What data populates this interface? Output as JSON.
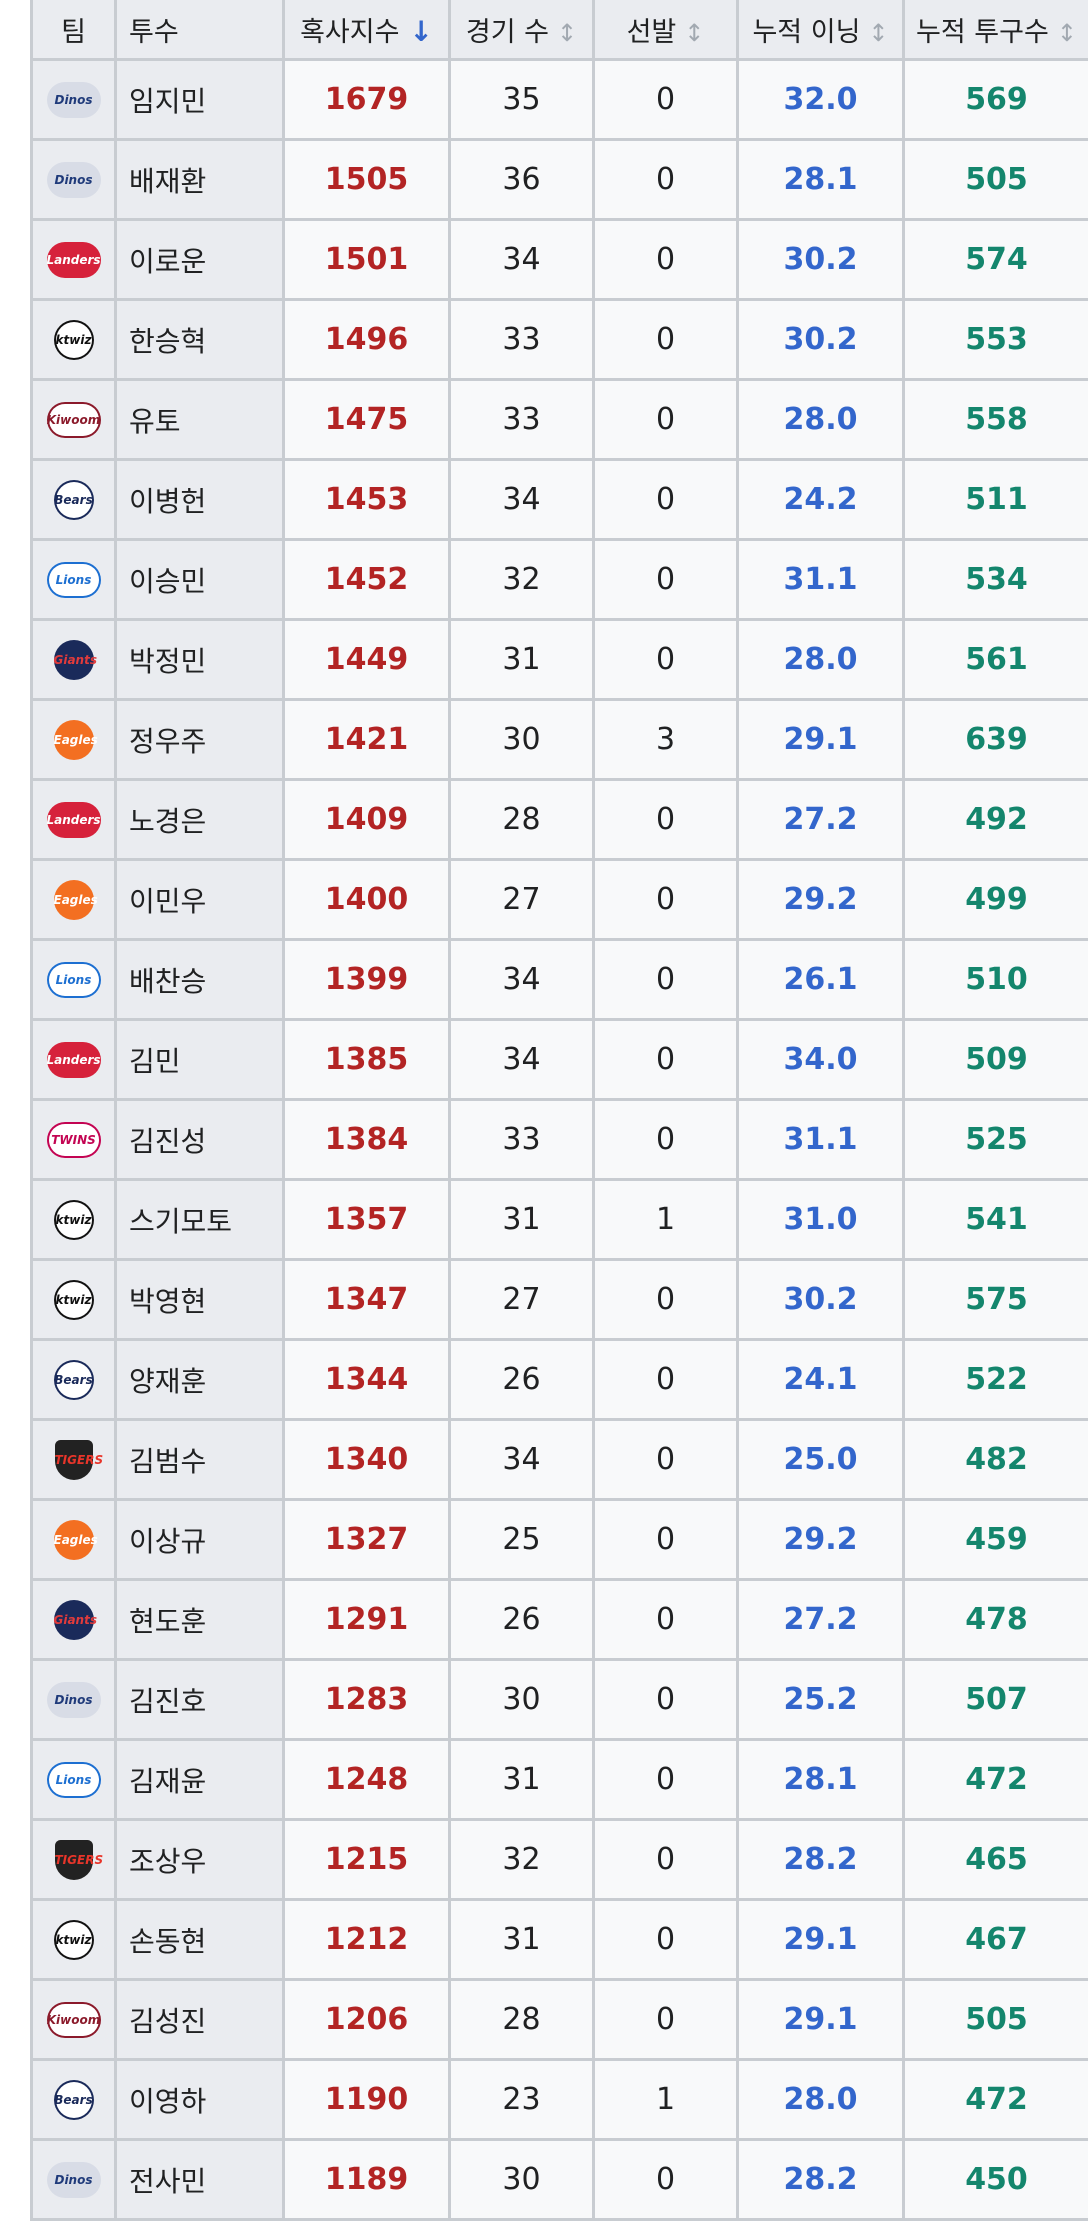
{
  "table": {
    "headers": {
      "team": "팀",
      "pitcher": "투수",
      "index": "혹사지수",
      "games": "경기 수",
      "starts": "선발",
      "innings": "누적 이닝",
      "pitches": "누적 투구수"
    },
    "sort_indicators": {
      "active": "↓",
      "inactive": "↕"
    },
    "rows": [
      {
        "team_logo": "Dinos",
        "pitcher": "임지민",
        "index": "1679",
        "games": "35",
        "starts": "0",
        "innings": "32.0",
        "pitches": "569"
      },
      {
        "team_logo": "Dinos",
        "pitcher": "배재환",
        "index": "1505",
        "games": "36",
        "starts": "0",
        "innings": "28.1",
        "pitches": "505"
      },
      {
        "team_logo": "Landers",
        "pitcher": "이로운",
        "index": "1501",
        "games": "34",
        "starts": "0",
        "innings": "30.2",
        "pitches": "574"
      },
      {
        "team_logo": "ktwiz",
        "pitcher": "한승혁",
        "index": "1496",
        "games": "33",
        "starts": "0",
        "innings": "30.2",
        "pitches": "553"
      },
      {
        "team_logo": "Kiwoom",
        "pitcher": "유토",
        "index": "1475",
        "games": "33",
        "starts": "0",
        "innings": "28.0",
        "pitches": "558"
      },
      {
        "team_logo": "Bears",
        "pitcher": "이병헌",
        "index": "1453",
        "games": "34",
        "starts": "0",
        "innings": "24.2",
        "pitches": "511"
      },
      {
        "team_logo": "Lions",
        "pitcher": "이승민",
        "index": "1452",
        "games": "32",
        "starts": "0",
        "innings": "31.1",
        "pitches": "534"
      },
      {
        "team_logo": "Giants",
        "pitcher": "박정민",
        "index": "1449",
        "games": "31",
        "starts": "0",
        "innings": "28.0",
        "pitches": "561"
      },
      {
        "team_logo": "Eagles",
        "pitcher": "정우주",
        "index": "1421",
        "games": "30",
        "starts": "3",
        "innings": "29.1",
        "pitches": "639"
      },
      {
        "team_logo": "Landers",
        "pitcher": "노경은",
        "index": "1409",
        "games": "28",
        "starts": "0",
        "innings": "27.2",
        "pitches": "492"
      },
      {
        "team_logo": "Eagles",
        "pitcher": "이민우",
        "index": "1400",
        "games": "27",
        "starts": "0",
        "innings": "29.2",
        "pitches": "499"
      },
      {
        "team_logo": "Lions",
        "pitcher": "배찬승",
        "index": "1399",
        "games": "34",
        "starts": "0",
        "innings": "26.1",
        "pitches": "510"
      },
      {
        "team_logo": "Landers",
        "pitcher": "김민",
        "index": "1385",
        "games": "34",
        "starts": "0",
        "innings": "34.0",
        "pitches": "509"
      },
      {
        "team_logo": "TWINS",
        "pitcher": "김진성",
        "index": "1384",
        "games": "33",
        "starts": "0",
        "innings": "31.1",
        "pitches": "525"
      },
      {
        "team_logo": "ktwiz",
        "pitcher": "스기모토",
        "index": "1357",
        "games": "31",
        "starts": "1",
        "innings": "31.0",
        "pitches": "541"
      },
      {
        "team_logo": "ktwiz",
        "pitcher": "박영현",
        "index": "1347",
        "games": "27",
        "starts": "0",
        "innings": "30.2",
        "pitches": "575"
      },
      {
        "team_logo": "Bears",
        "pitcher": "양재훈",
        "index": "1344",
        "games": "26",
        "starts": "0",
        "innings": "24.1",
        "pitches": "522"
      },
      {
        "team_logo": "TIGERS",
        "pitcher": "김범수",
        "index": "1340",
        "games": "34",
        "starts": "0",
        "innings": "25.0",
        "pitches": "482"
      },
      {
        "team_logo": "Eagles",
        "pitcher": "이상규",
        "index": "1327",
        "games": "25",
        "starts": "0",
        "innings": "29.2",
        "pitches": "459"
      },
      {
        "team_logo": "Giants",
        "pitcher": "현도훈",
        "index": "1291",
        "games": "26",
        "starts": "0",
        "innings": "27.2",
        "pitches": "478"
      },
      {
        "team_logo": "Dinos",
        "pitcher": "김진호",
        "index": "1283",
        "games": "30",
        "starts": "0",
        "innings": "25.2",
        "pitches": "507"
      },
      {
        "team_logo": "Lions",
        "pitcher": "김재윤",
        "index": "1248",
        "games": "31",
        "starts": "0",
        "innings": "28.1",
        "pitches": "472"
      },
      {
        "team_logo": "TIGERS",
        "pitcher": "조상우",
        "index": "1215",
        "games": "32",
        "starts": "0",
        "innings": "28.2",
        "pitches": "465"
      },
      {
        "team_logo": "ktwiz",
        "pitcher": "손동현",
        "index": "1212",
        "games": "31",
        "starts": "0",
        "innings": "29.1",
        "pitches": "467"
      },
      {
        "team_logo": "Kiwoom",
        "pitcher": "김성진",
        "index": "1206",
        "games": "28",
        "starts": "0",
        "innings": "29.1",
        "pitches": "505"
      },
      {
        "team_logo": "Bears",
        "pitcher": "이영하",
        "index": "1190",
        "games": "23",
        "starts": "1",
        "innings": "28.0",
        "pitches": "472"
      },
      {
        "team_logo": "Dinos",
        "pitcher": "전사민",
        "index": "1189",
        "games": "30",
        "starts": "0",
        "innings": "28.2",
        "pitches": "450"
      }
    ]
  },
  "logo_styles": {
    "Dinos": {
      "bg": "#d8dce6",
      "fg": "#1f3a7a",
      "shape": "pill"
    },
    "Landers": {
      "bg": "#d6213b",
      "fg": "#ffffff",
      "shape": "pill"
    },
    "ktwiz": {
      "bg": "#ffffff",
      "fg": "#111111",
      "shape": "round"
    },
    "Kiwoom": {
      "bg": "#ffffff",
      "fg": "#8b1a2b",
      "shape": "pill"
    },
    "Bears": {
      "bg": "#ffffff",
      "fg": "#1a2a5a",
      "shape": "round"
    },
    "Lions": {
      "bg": "#ffffff",
      "fg": "#1d6fd1",
      "shape": "pill"
    },
    "Giants": {
      "bg": "#1a2a5a",
      "fg": "#e23b3b",
      "shape": "round"
    },
    "Eagles": {
      "bg": "#f36f21",
      "fg": "#ffffff",
      "shape": "round"
    },
    "TWINS": {
      "bg": "#ffffff",
      "fg": "#c30452",
      "shape": "pill"
    },
    "TIGERS": {
      "bg": "#222222",
      "fg": "#e8352a",
      "shape": "shield"
    }
  }
}
